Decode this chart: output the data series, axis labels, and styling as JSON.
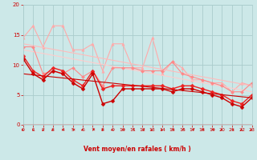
{
  "background_color": "#cce8e8",
  "grid_color": "#aacccc",
  "line_color_dark": "#cc0000",
  "xlabel": "Vent moyen/en rafales ( km/h )",
  "xlim": [
    0,
    23
  ],
  "ylim": [
    0,
    20
  ],
  "xticks": [
    0,
    1,
    2,
    3,
    4,
    5,
    6,
    7,
    8,
    9,
    10,
    11,
    12,
    13,
    14,
    15,
    16,
    17,
    18,
    19,
    20,
    21,
    22,
    23
  ],
  "yticks": [
    0,
    5,
    10,
    15,
    20
  ],
  "series": [
    {
      "x": [
        0,
        1,
        2,
        3,
        4,
        5,
        6,
        7,
        8,
        9,
        10,
        11,
        12,
        13,
        14,
        15,
        16,
        17,
        18,
        19,
        20,
        21,
        22,
        23
      ],
      "y": [
        14.5,
        16.5,
        13.0,
        16.5,
        16.5,
        12.5,
        12.5,
        13.5,
        9.0,
        13.5,
        13.5,
        9.5,
        9.5,
        14.5,
        8.5,
        10.5,
        9.5,
        7.5,
        7.5,
        7.0,
        7.0,
        5.5,
        7.0,
        6.5
      ],
      "color": "#ffaaaa",
      "linewidth": 0.8,
      "marker": "^",
      "markersize": 2.5
    },
    {
      "x": [
        0,
        23
      ],
      "y": [
        13.5,
        6.5
      ],
      "color": "#ffbbbb",
      "linewidth": 0.8,
      "marker": "none",
      "markersize": 0
    },
    {
      "x": [
        0,
        23
      ],
      "y": [
        12.5,
        5.5
      ],
      "color": "#ffcccc",
      "linewidth": 0.8,
      "marker": "none",
      "markersize": 0
    },
    {
      "x": [
        0,
        1,
        2,
        3,
        4,
        5,
        6,
        7,
        8,
        9,
        10,
        11,
        12,
        13,
        14,
        15,
        16,
        17,
        18,
        19,
        20,
        21,
        22,
        23
      ],
      "y": [
        13.0,
        13.0,
        8.5,
        9.0,
        8.5,
        9.5,
        8.0,
        9.0,
        6.5,
        9.5,
        9.5,
        9.5,
        9.0,
        9.0,
        9.0,
        10.5,
        8.5,
        8.0,
        7.5,
        7.0,
        6.5,
        5.5,
        5.5,
        7.0
      ],
      "color": "#ff8888",
      "linewidth": 0.8,
      "marker": "D",
      "markersize": 2
    },
    {
      "x": [
        0,
        1,
        2,
        3,
        4,
        5,
        6,
        7,
        8,
        9,
        10,
        11,
        12,
        13,
        14,
        15,
        16,
        17,
        18,
        19,
        20,
        21,
        22,
        23
      ],
      "y": [
        11.5,
        9.0,
        8.0,
        9.5,
        9.0,
        7.5,
        6.5,
        9.0,
        6.0,
        6.5,
        6.5,
        6.5,
        6.5,
        6.5,
        6.5,
        6.0,
        6.5,
        6.5,
        6.0,
        5.5,
        5.0,
        4.0,
        3.5,
        5.0
      ],
      "color": "#ee2222",
      "linewidth": 1.0,
      "marker": "D",
      "markersize": 2.5
    },
    {
      "x": [
        0,
        1,
        2,
        3,
        4,
        5,
        6,
        7,
        8,
        9,
        10,
        11,
        12,
        13,
        14,
        15,
        16,
        17,
        18,
        19,
        20,
        21,
        22,
        23
      ],
      "y": [
        11.0,
        8.5,
        7.5,
        9.0,
        8.5,
        7.0,
        6.0,
        8.5,
        3.5,
        4.0,
        6.0,
        6.0,
        6.0,
        6.0,
        6.0,
        5.5,
        6.0,
        6.0,
        5.5,
        5.0,
        4.5,
        3.5,
        3.0,
        4.5
      ],
      "color": "#cc0000",
      "linewidth": 1.0,
      "marker": "D",
      "markersize": 2.5
    },
    {
      "x": [
        0,
        23
      ],
      "y": [
        8.5,
        4.5
      ],
      "color": "#cc0000",
      "linewidth": 0.8,
      "marker": "none",
      "markersize": 0
    }
  ],
  "wind_arrows_angles": [
    225,
    200,
    200,
    220,
    200,
    270,
    225,
    270,
    200,
    230,
    270,
    250,
    270,
    230,
    225,
    270,
    245,
    270,
    270,
    270,
    225,
    270,
    230,
    230
  ]
}
